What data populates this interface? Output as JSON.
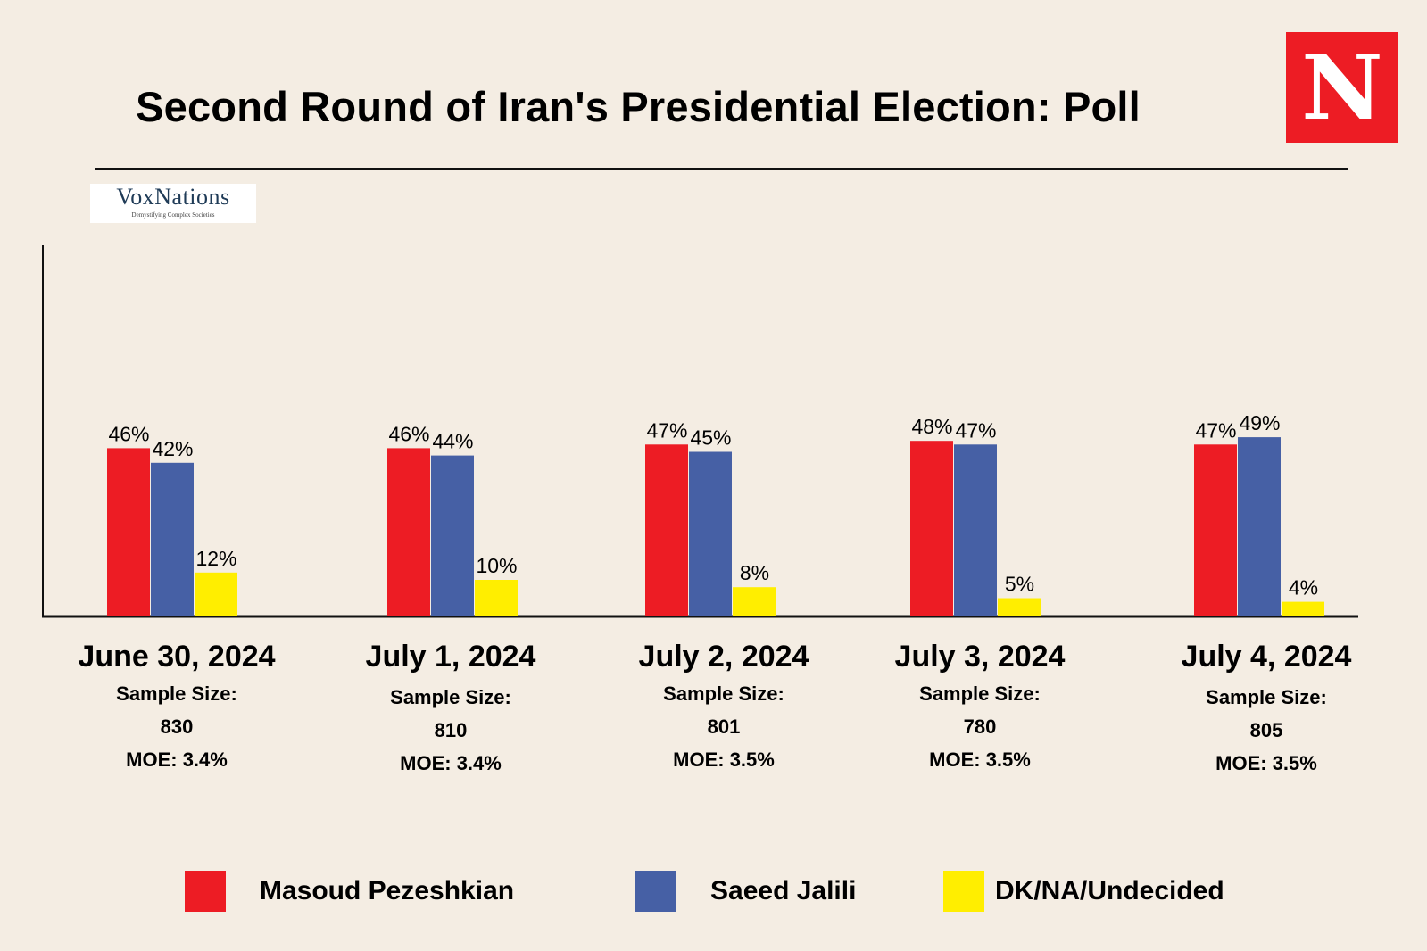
{
  "header": {
    "title": "Second Round of Iran's Presidential Election: Poll",
    "publisher_logo": "N",
    "source_logo": {
      "name": "VoxNations",
      "tagline": "Demystifying Complex Societies"
    }
  },
  "colors": {
    "background": "#f4ede3",
    "pezeshkian": "#ed1c24",
    "jalili": "#4660a5",
    "undecided": "#ffee00"
  },
  "chart_data": {
    "type": "bar",
    "title": "Second Round of Iran's Presidential Election: Poll",
    "xlabel": "",
    "ylabel": "",
    "ylim": [
      0,
      100
    ],
    "grid": false,
    "legend_position": "bottom",
    "categories": [
      "June 30, 2024",
      "July 1, 2024",
      "July 2, 2024",
      "July 3, 2024",
      "July 4, 2024"
    ],
    "sample_sizes": [
      "830",
      "810",
      "801",
      "780",
      "805"
    ],
    "moe": [
      "MOE: 3.4%",
      "MOE: 3.4%",
      "MOE: 3.5%",
      "MOE: 3.5%",
      "MOE: 3.5%"
    ],
    "sample_label": "Sample Size:",
    "series": [
      {
        "name": "Masoud Pezeshkian",
        "color": "#ed1c24",
        "values": [
          46,
          46,
          47,
          48,
          47
        ]
      },
      {
        "name": "Saeed Jalili",
        "color": "#4660a5",
        "values": [
          42,
          44,
          45,
          47,
          49
        ]
      },
      {
        "name": "DK/NA/Undecided",
        "color": "#ffee00",
        "values": [
          12,
          10,
          8,
          5,
          4
        ]
      }
    ]
  }
}
